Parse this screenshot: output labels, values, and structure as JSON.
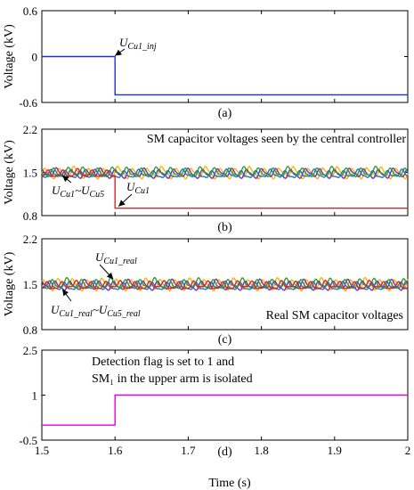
{
  "figure": {
    "xlabel": "Time (s)",
    "x_ticks": [
      "1.5",
      "1.6",
      "1.7",
      "1.8",
      "1.9",
      "2"
    ]
  },
  "chart_data": [
    {
      "type": "line",
      "label": "(a)",
      "ylabel": "Voltage (kV)",
      "ylim": [
        -0.6,
        0.6
      ],
      "y_ticks": [
        "0.6",
        "0",
        "-0.6"
      ],
      "xlim": [
        1.5,
        2.0
      ],
      "series": [
        {
          "color": "#1f2fd6",
          "points": [
            [
              1.5,
              0
            ],
            [
              1.6,
              0
            ],
            [
              1.6,
              -0.5
            ],
            [
              2.0,
              -0.5
            ]
          ]
        }
      ],
      "annotations": [
        {
          "base": "U",
          "sub": "Cu1_inj",
          "x": 1.6,
          "y": 0
        }
      ]
    },
    {
      "type": "line",
      "label": "(b)",
      "ylabel": "Voltage (kV)",
      "ylim": [
        0.8,
        2.2
      ],
      "y_ticks": [
        "2.2",
        "1.5",
        "0.8"
      ],
      "xlim": [
        1.5,
        2.0
      ],
      "title": "SM capacitor voltages seen by the central controller",
      "series": [
        {
          "color": "#ffb300",
          "base": 1.48,
          "amp": 0.07,
          "phase": 0.0
        },
        {
          "color": "#7b2cbf",
          "base": 1.47,
          "amp": 0.06,
          "phase": 1.3
        },
        {
          "color": "#2ca02c",
          "base": 1.49,
          "amp": 0.06,
          "phase": 2.6
        },
        {
          "color": "#1f77b4",
          "base": 1.46,
          "amp": 0.05,
          "phase": 3.9
        },
        {
          "color": "#d62728",
          "base": 1.47,
          "amp": 0.05,
          "phase": 5.1,
          "drop": {
            "x": 1.6,
            "y": 0.92
          }
        }
      ],
      "annotations": [
        {
          "base": "U",
          "sub": "Cu1",
          "text_after": "~U",
          "sub2": "Cu5",
          "x": 1.55,
          "y": 1.45
        },
        {
          "base": "U",
          "sub": "Cu1",
          "x": 1.6,
          "y": 0.92
        }
      ]
    },
    {
      "type": "line",
      "label": "(c)",
      "ylabel": "Voltage (kV)",
      "ylim": [
        0.8,
        2.2
      ],
      "y_ticks": [
        "2.2",
        "1.5",
        "0.8"
      ],
      "xlim": [
        1.5,
        2.0
      ],
      "title": "Real SM capacitor voltages",
      "series": [
        {
          "color": "#ffb300",
          "base": 1.48,
          "amp": 0.07,
          "phase": 0.6
        },
        {
          "color": "#7b2cbf",
          "base": 1.47,
          "amp": 0.06,
          "phase": 1.9
        },
        {
          "color": "#2ca02c",
          "base": 1.49,
          "amp": 0.06,
          "phase": 3.2
        },
        {
          "color": "#1f77b4",
          "base": 1.46,
          "amp": 0.05,
          "phase": 4.4
        },
        {
          "color": "#d62728",
          "base": 1.47,
          "amp": 0.05,
          "phase": 5.6
        }
      ],
      "annotations": [
        {
          "base": "U",
          "sub": "Cu1_real",
          "x": 1.6,
          "y": 1.55
        },
        {
          "base": "U",
          "sub": "Cu1_real",
          "text_after": "~U",
          "sub2": "Cu5_real",
          "x": 1.55,
          "y": 1.45
        }
      ]
    },
    {
      "type": "line",
      "label": "(d)",
      "ylabel": "",
      "ylim": [
        -0.5,
        2.5
      ],
      "y_ticks": [
        "2.5",
        "1",
        "-0.5"
      ],
      "xlim": [
        1.5,
        2.0
      ],
      "series": [
        {
          "color": "#e000e0",
          "points": [
            [
              1.5,
              0
            ],
            [
              1.6,
              0
            ],
            [
              1.6,
              1
            ],
            [
              2.0,
              1
            ]
          ]
        }
      ],
      "annotations": [
        {
          "text_lines": [
            "Detection flag is set to 1 and",
            "SM₁ in the upper arm is isolated"
          ],
          "x": 1.6,
          "y": 1
        }
      ]
    }
  ]
}
